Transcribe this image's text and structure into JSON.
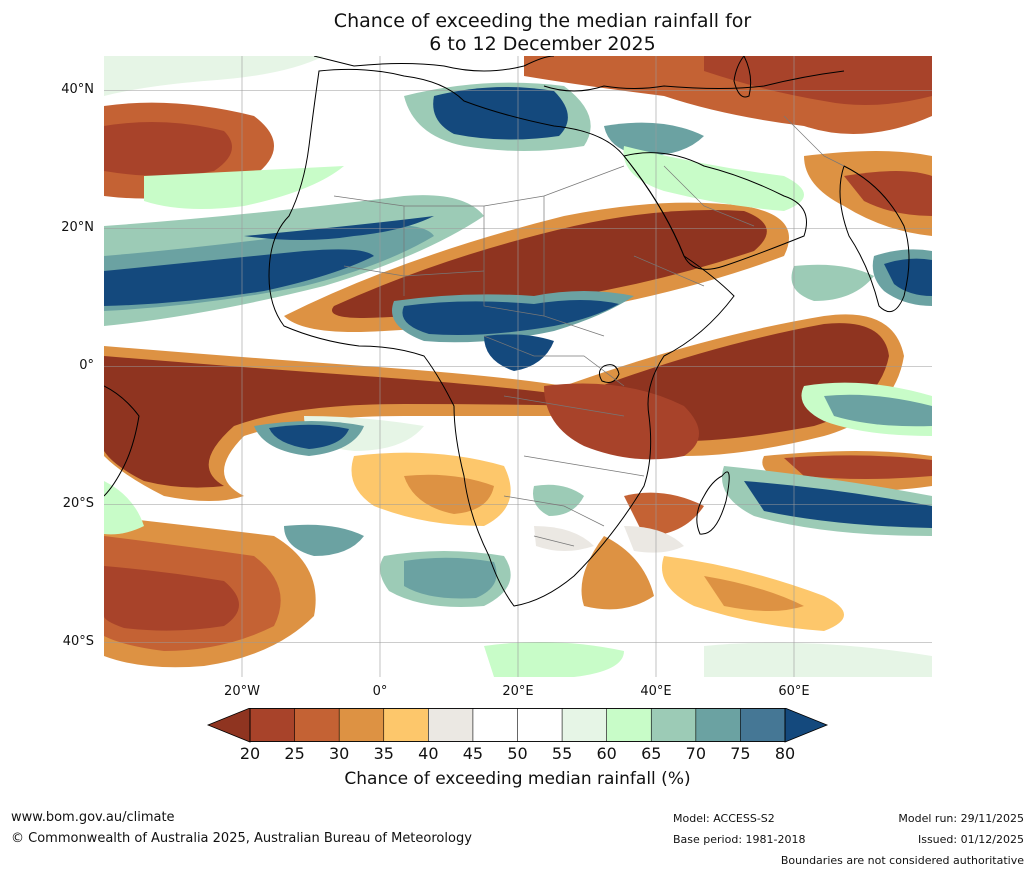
{
  "title": {
    "line1": "Chance of exceeding the median rainfall for",
    "line2": "6 to 12 December 2025"
  },
  "map": {
    "lat_labels": [
      "40°N",
      "20°N",
      "0°",
      "20°S",
      "40°S"
    ],
    "lon_labels": [
      "20°W",
      "0°",
      "20°E",
      "40°E",
      "60°E"
    ],
    "lat_range": [
      -45,
      45
    ],
    "lon_range": [
      -40,
      80
    ]
  },
  "colorbar": {
    "ticks": [
      "20",
      "25",
      "30",
      "35",
      "40",
      "45",
      "50",
      "55",
      "60",
      "65",
      "70",
      "75",
      "80"
    ],
    "colors": [
      "#8f3420",
      "#a8432a",
      "#c46234",
      "#dd9243",
      "#fdc76b",
      "#ebe8e3",
      "#ffffff",
      "#ffffff",
      "#e6f5e6",
      "#c8fcc8",
      "#9ccbb6",
      "#6ba2a2",
      "#457795"
    ],
    "under_color": "#8f3420",
    "over_color": "#14497d",
    "label": "Chance of exceeding median rainfall (%)"
  },
  "footer": {
    "website": "www.bom.gov.au/climate",
    "copyright": "© Commonwealth of Australia 2025, Australian Bureau of Meteorology",
    "model": "Model: ACCESS-S2",
    "base_period": "Base period: 1981-2018",
    "model_run": "Model run: 29/11/2025",
    "issued": "Issued: 01/12/2025",
    "disclaimer": "Boundaries are not considered authoritative"
  }
}
